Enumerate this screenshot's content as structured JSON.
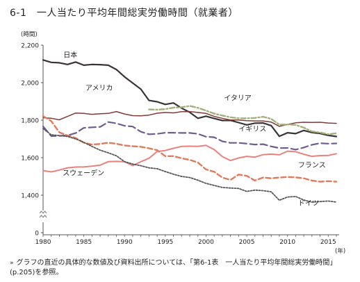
{
  "page": {
    "title": "6-1　一人当たり平均年間総実労働時間（就業者）",
    "footnote_mark": "»",
    "footnote": "グラフの直近の具体的な数値及び資料出所については、「第6-1表　一人当たり平均年間総実労働時間」(p.205)を参照。"
  },
  "chart_data": {
    "type": "line",
    "title": "",
    "xlabel": "(年)",
    "ylabel": "(時間)",
    "xlim": [
      1980,
      2016
    ],
    "ylim": [
      0,
      2200
    ],
    "y_axis_break": [
      0,
      1300
    ],
    "x_ticks": [
      1980,
      1985,
      1990,
      1995,
      2000,
      2005,
      2010,
      2015
    ],
    "x_tick_labels": [
      "1980",
      "1985",
      "1990",
      "1995",
      "2000",
      "2005",
      "2010",
      "2015"
    ],
    "y_ticks": [
      0,
      1400,
      1600,
      1800,
      2000,
      2200
    ],
    "y_tick_labels": [
      "0",
      "1,400",
      "1,600",
      "1,800",
      "2,000",
      "2,200"
    ],
    "grid": false,
    "series": [
      {
        "name": "日本",
        "color": "#3a3336",
        "dash": "",
        "width": 2.2,
        "x": [
          1980,
          1981,
          1982,
          1983,
          1984,
          1985,
          1986,
          1987,
          1988,
          1989,
          1990,
          1991,
          1992,
          1993,
          1994,
          1995,
          1996,
          1997,
          1998,
          1999,
          2000,
          2001,
          2002,
          2003,
          2004,
          2005,
          2006,
          2007,
          2008,
          2009,
          2010,
          2011,
          2012,
          2013,
          2014,
          2015,
          2016
        ],
        "values": [
          2121,
          2108,
          2106,
          2097,
          2110,
          2093,
          2097,
          2096,
          2093,
          2070,
          2031,
          1998,
          1965,
          1905,
          1898,
          1884,
          1892,
          1864,
          1842,
          1810,
          1821,
          1809,
          1798,
          1799,
          1787,
          1775,
          1784,
          1785,
          1771,
          1714,
          1733,
          1728,
          1745,
          1734,
          1729,
          1719,
          1713
        ]
      },
      {
        "name": "アメリカ",
        "color": "#7d3b38",
        "dash": "",
        "width": 1.5,
        "x": [
          1980,
          1981,
          1982,
          1983,
          1984,
          1985,
          1986,
          1987,
          1988,
          1989,
          1990,
          1991,
          1992,
          1993,
          1994,
          1995,
          1996,
          1997,
          1998,
          1999,
          2000,
          2001,
          2002,
          2003,
          2004,
          2005,
          2006,
          2007,
          2008,
          2009,
          2010,
          2011,
          2012,
          2013,
          2014,
          2015,
          2016
        ],
        "values": [
          1813,
          1810,
          1802,
          1820,
          1838,
          1836,
          1831,
          1834,
          1836,
          1846,
          1833,
          1824,
          1823,
          1827,
          1837,
          1841,
          1839,
          1845,
          1846,
          1841,
          1836,
          1820,
          1810,
          1801,
          1801,
          1797,
          1796,
          1796,
          1790,
          1767,
          1777,
          1786,
          1789,
          1788,
          1789,
          1785,
          1783
        ]
      },
      {
        "name": "イタリア",
        "color": "#a3b07a",
        "dash": "7 3 2 3",
        "width": 2.4,
        "x": [
          1993,
          1994,
          1995,
          1996,
          1997,
          1998,
          1999,
          2000,
          2001,
          2002,
          2003,
          2004,
          2005,
          2006,
          2007,
          2008,
          2009,
          2010,
          2011,
          2012,
          2013,
          2014,
          2015,
          2016
        ],
        "values": [
          1857,
          1856,
          1859,
          1867,
          1869,
          1876,
          1866,
          1851,
          1835,
          1825,
          1815,
          1810,
          1810,
          1812,
          1818,
          1807,
          1776,
          1777,
          1775,
          1760,
          1740,
          1734,
          1725,
          1730
        ]
      },
      {
        "name": "イギリス",
        "color": "#6e5c8f",
        "dash": "10 5",
        "width": 2.2,
        "x": [
          1980,
          1981,
          1982,
          1983,
          1984,
          1985,
          1986,
          1987,
          1988,
          1989,
          1990,
          1991,
          1992,
          1993,
          1994,
          1995,
          1996,
          1997,
          1998,
          1999,
          2000,
          2001,
          2002,
          2003,
          2004,
          2005,
          2006,
          2007,
          2008,
          2009,
          2010,
          2011,
          2012,
          2013,
          2014,
          2015,
          2016
        ],
        "values": [
          1767,
          1715,
          1716,
          1719,
          1731,
          1759,
          1762,
          1764,
          1790,
          1783,
          1770,
          1766,
          1738,
          1725,
          1727,
          1733,
          1733,
          1732,
          1732,
          1727,
          1712,
          1709,
          1687,
          1679,
          1679,
          1675,
          1670,
          1672,
          1660,
          1651,
          1652,
          1643,
          1654,
          1669,
          1677,
          1675,
          1676
        ]
      },
      {
        "name": "フランス",
        "color": "#e17a5a",
        "dash": "7 4",
        "width": 2.4,
        "x": [
          1980,
          1981,
          1982,
          1983,
          1984,
          1985,
          1986,
          1987,
          1988,
          1989,
          1990,
          1991,
          1992,
          1993,
          1994,
          1995,
          1996,
          1997,
          1998,
          1999,
          2000,
          2001,
          2002,
          2003,
          2004,
          2005,
          2006,
          2007,
          2008,
          2009,
          2010,
          2011,
          2012,
          2013,
          2014,
          2015,
          2016
        ],
        "values": [
          1822,
          1795,
          1735,
          1718,
          1705,
          1680,
          1670,
          1673,
          1680,
          1674,
          1665,
          1661,
          1658,
          1650,
          1640,
          1608,
          1608,
          1597,
          1588,
          1575,
          1537,
          1525,
          1494,
          1481,
          1510,
          1503,
          1478,
          1494,
          1490,
          1494,
          1497,
          1495,
          1490,
          1478,
          1472,
          1475,
          1472
        ]
      },
      {
        "name": "スウェーデン",
        "color": "#e9817c",
        "dash": "",
        "width": 2.0,
        "x": [
          1980,
          1981,
          1982,
          1983,
          1984,
          1985,
          1986,
          1987,
          1988,
          1989,
          1990,
          1991,
          1992,
          1993,
          1994,
          1995,
          1996,
          1997,
          1998,
          1999,
          2000,
          2001,
          2002,
          2003,
          2004,
          2005,
          2006,
          2007,
          2008,
          2009,
          2010,
          2011,
          2012,
          2013,
          2014,
          2015,
          2016
        ],
        "values": [
          1531,
          1524,
          1534,
          1546,
          1550,
          1551,
          1555,
          1560,
          1579,
          1580,
          1578,
          1558,
          1578,
          1597,
          1633,
          1638,
          1650,
          1660,
          1661,
          1660,
          1666,
          1643,
          1606,
          1585,
          1598,
          1607,
          1603,
          1616,
          1619,
          1615,
          1635,
          1632,
          1618,
          1607,
          1611,
          1612,
          1621
        ]
      },
      {
        "name": "ドイツ",
        "color": "#555555",
        "dash": "2 2",
        "width": 1.8,
        "x": [
          1980,
          1981,
          1982,
          1983,
          1984,
          1985,
          1986,
          1987,
          1988,
          1989,
          1990,
          1991,
          1992,
          1993,
          1994,
          1995,
          1996,
          1997,
          1998,
          1999,
          2000,
          2001,
          2002,
          2003,
          2004,
          2005,
          2006,
          2007,
          2008,
          2009,
          2010,
          2011,
          2012,
          2013,
          2014,
          2015,
          2016
        ],
        "values": [
          1755,
          1722,
          1718,
          1713,
          1700,
          1682,
          1660,
          1640,
          1626,
          1610,
          1579,
          1566,
          1557,
          1546,
          1541,
          1526,
          1512,
          1500,
          1494,
          1480,
          1463,
          1452,
          1441,
          1438,
          1436,
          1420,
          1427,
          1424,
          1418,
          1373,
          1390,
          1393,
          1374,
          1363,
          1366,
          1369,
          1363
        ]
      }
    ]
  }
}
